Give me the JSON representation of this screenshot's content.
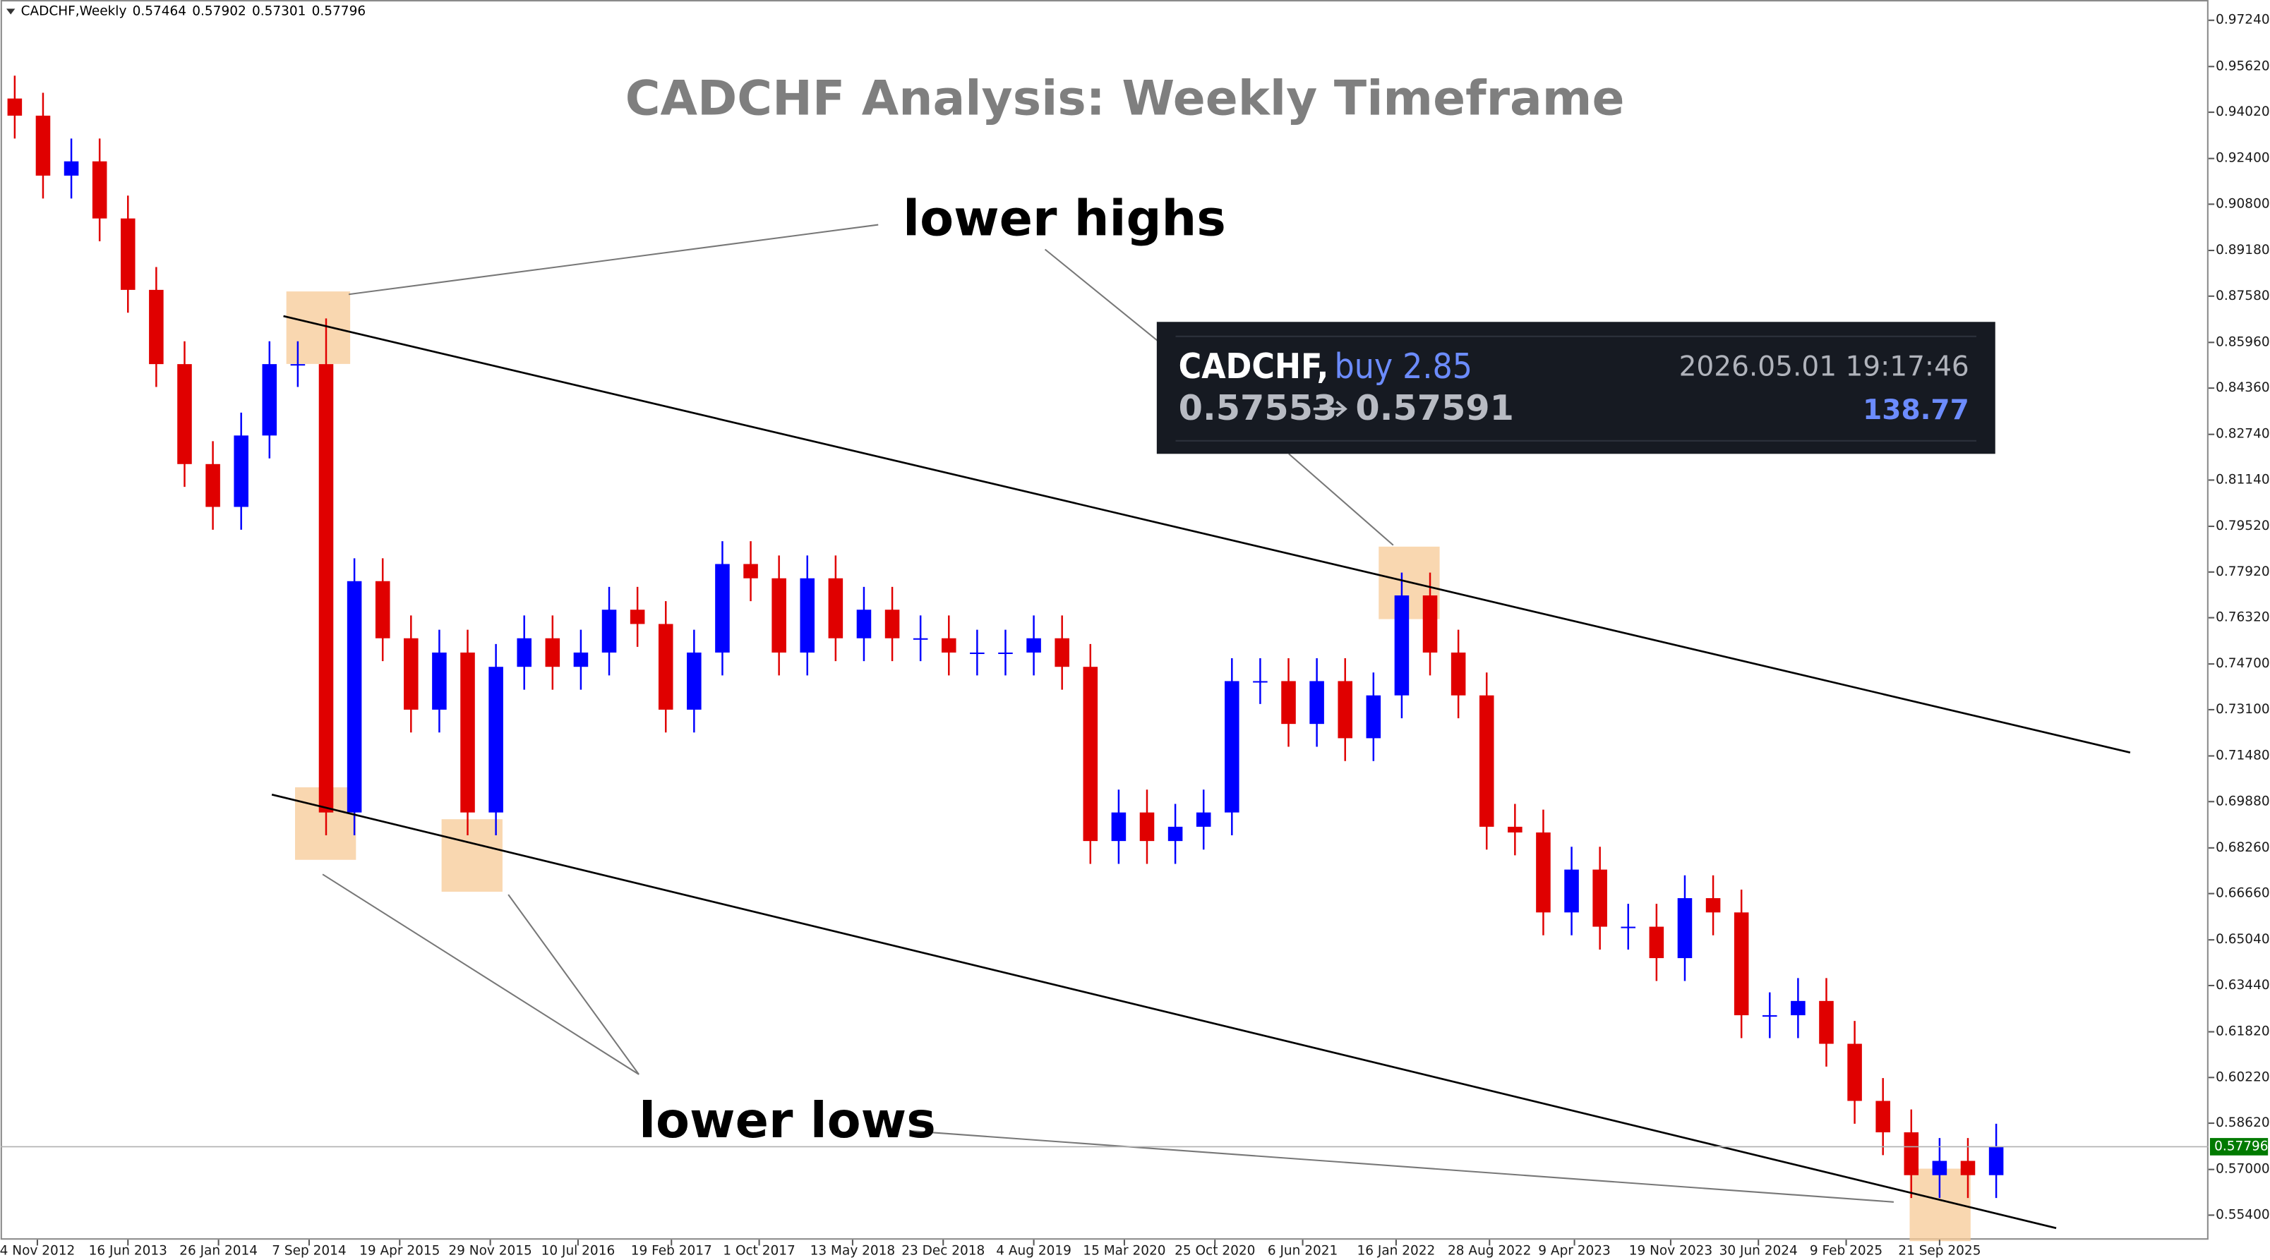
{
  "header": {
    "symbol": "CADCHF,Weekly",
    "values": [
      0.57464,
      0.57902,
      0.57301,
      0.57796
    ]
  },
  "trade_popup": {
    "symbol": "CADCHF,",
    "side": "buy 2.85",
    "time": "2026.05.01 19:17:46",
    "open_price": "0.57553",
    "current_price": "0.57591",
    "profit": "138.77"
  },
  "chart_data": {
    "type": "candlestick",
    "title": "CADCHF Analysis: Weekly Timeframe",
    "annotations": [
      "lower highs",
      "lower lows"
    ],
    "up_color": "#0000ff",
    "down_color": "#e00000",
    "last_price": 0.57796,
    "last_price_color": "#007a00",
    "xlim": [
      0,
      780
    ],
    "ylim": [
      0.5454,
      0.9795
    ],
    "xticks": [
      {
        "value": 13,
        "label": "4 Nov 2012"
      },
      {
        "value": 45,
        "label": "16 Jun 2013"
      },
      {
        "value": 77,
        "label": "26 Jan 2014"
      },
      {
        "value": 109,
        "label": "7 Sep 2014"
      },
      {
        "value": 141,
        "label": "19 Apr 2015"
      },
      {
        "value": 173,
        "label": "29 Nov 2015"
      },
      {
        "value": 204,
        "label": "10 Jul 2016"
      },
      {
        "value": 237,
        "label": "19 Feb 2017"
      },
      {
        "value": 268,
        "label": "1 Oct 2017"
      },
      {
        "value": 301,
        "label": "13 May 2018"
      },
      {
        "value": 333,
        "label": "23 Dec 2018"
      },
      {
        "value": 365,
        "label": "4 Aug 2019"
      },
      {
        "value": 397,
        "label": "15 Mar 2020"
      },
      {
        "value": 429,
        "label": "25 Oct 2020"
      },
      {
        "value": 460,
        "label": "6 Jun 2021"
      },
      {
        "value": 493,
        "label": "16 Jan 2022"
      },
      {
        "value": 526,
        "label": "28 Aug 2022"
      },
      {
        "value": 556,
        "label": "9 Apr 2023"
      },
      {
        "value": 590,
        "label": "19 Nov 2023"
      },
      {
        "value": 621,
        "label": "30 Jun 2024"
      },
      {
        "value": 652,
        "label": "9 Feb 2025"
      },
      {
        "value": 685,
        "label": "21 Sep 2025"
      }
    ],
    "yticks": [
      {
        "value": 0.9724,
        "label": "0.97240"
      },
      {
        "value": 0.9562,
        "label": "0.95620"
      },
      {
        "value": 0.9402,
        "label": "0.94020"
      },
      {
        "value": 0.924,
        "label": "0.92400"
      },
      {
        "value": 0.908,
        "label": "0.90800"
      },
      {
        "value": 0.8918,
        "label": "0.89180"
      },
      {
        "value": 0.8758,
        "label": "0.87580"
      },
      {
        "value": 0.8596,
        "label": "0.85960"
      },
      {
        "value": 0.8436,
        "label": "0.84360"
      },
      {
        "value": 0.8274,
        "label": "0.82740"
      },
      {
        "value": 0.8114,
        "label": "0.81140"
      },
      {
        "value": 0.7952,
        "label": "0.79520"
      },
      {
        "value": 0.7792,
        "label": "0.77920"
      },
      {
        "value": 0.7632,
        "label": "0.76320"
      },
      {
        "value": 0.747,
        "label": "0.74700"
      },
      {
        "value": 0.731,
        "label": "0.73100"
      },
      {
        "value": 0.7148,
        "label": "0.71480"
      },
      {
        "value": 0.6988,
        "label": "0.69880"
      },
      {
        "value": 0.6826,
        "label": "0.68260"
      },
      {
        "value": 0.6666,
        "label": "0.66660"
      },
      {
        "value": 0.6504,
        "label": "0.65040"
      },
      {
        "value": 0.6344,
        "label": "0.63440"
      },
      {
        "value": 0.6182,
        "label": "0.61820"
      },
      {
        "value": 0.6022,
        "label": "0.60220"
      },
      {
        "value": 0.5862,
        "label": "0.58620"
      },
      {
        "value": 0.57,
        "label": "0.57000"
      },
      {
        "value": 0.554,
        "label": "0.55400"
      }
    ],
    "x": [
      5,
      15,
      25,
      35,
      45,
      55,
      65,
      75,
      85,
      95,
      105,
      115,
      125,
      135,
      145,
      155,
      165,
      175,
      185,
      195,
      205,
      215,
      225,
      235,
      245,
      255,
      265,
      275,
      285,
      295,
      305,
      315,
      325,
      335,
      345,
      355,
      365,
      375,
      385,
      395,
      405,
      415,
      425,
      435,
      445,
      455,
      465,
      475,
      485,
      495,
      505,
      515,
      525,
      535,
      545,
      555,
      565,
      575,
      585,
      595,
      605,
      615,
      625,
      635,
      645,
      655,
      665,
      675,
      685,
      695,
      705
    ],
    "open": [
      0.945,
      0.939,
      0.918,
      0.923,
      0.903,
      0.878,
      0.852,
      0.817,
      0.802,
      0.827,
      0.852,
      0.852,
      0.695,
      0.776,
      0.756,
      0.731,
      0.751,
      0.695,
      0.746,
      0.756,
      0.746,
      0.751,
      0.766,
      0.761,
      0.731,
      0.751,
      0.782,
      0.777,
      0.751,
      0.777,
      0.756,
      0.766,
      0.756,
      0.756,
      0.751,
      0.751,
      0.751,
      0.756,
      0.746,
      0.685,
      0.695,
      0.685,
      0.69,
      0.695,
      0.741,
      0.741,
      0.726,
      0.741,
      0.721,
      0.736,
      0.771,
      0.751,
      0.736,
      0.69,
      0.688,
      0.66,
      0.675,
      0.655,
      0.655,
      0.644,
      0.665,
      0.66,
      0.624,
      0.624,
      0.629,
      0.614,
      0.594,
      0.583,
      0.568,
      0.573,
      0.568
    ],
    "high": [
      0.953,
      0.947,
      0.931,
      0.931,
      0.911,
      0.886,
      0.86,
      0.825,
      0.835,
      0.86,
      0.86,
      0.868,
      0.784,
      0.784,
      0.764,
      0.759,
      0.759,
      0.754,
      0.764,
      0.764,
      0.759,
      0.774,
      0.774,
      0.769,
      0.759,
      0.79,
      0.79,
      0.785,
      0.785,
      0.785,
      0.774,
      0.774,
      0.764,
      0.764,
      0.759,
      0.759,
      0.764,
      0.764,
      0.754,
      0.703,
      0.703,
      0.698,
      0.703,
      0.749,
      0.749,
      0.749,
      0.749,
      0.749,
      0.744,
      0.779,
      0.779,
      0.759,
      0.744,
      0.698,
      0.696,
      0.683,
      0.683,
      0.663,
      0.663,
      0.673,
      0.673,
      0.668,
      0.632,
      0.637,
      0.637,
      0.622,
      0.602,
      0.591,
      0.581,
      0.581,
      0.586
    ],
    "low": [
      0.931,
      0.91,
      0.91,
      0.895,
      0.87,
      0.844,
      0.809,
      0.794,
      0.794,
      0.819,
      0.844,
      0.687,
      0.687,
      0.748,
      0.723,
      0.723,
      0.687,
      0.687,
      0.738,
      0.738,
      0.738,
      0.743,
      0.753,
      0.723,
      0.723,
      0.743,
      0.769,
      0.743,
      0.743,
      0.748,
      0.748,
      0.748,
      0.748,
      0.743,
      0.743,
      0.743,
      0.743,
      0.738,
      0.677,
      0.677,
      0.677,
      0.677,
      0.682,
      0.687,
      0.733,
      0.718,
      0.718,
      0.713,
      0.713,
      0.728,
      0.743,
      0.728,
      0.682,
      0.68,
      0.652,
      0.652,
      0.647,
      0.647,
      0.636,
      0.636,
      0.652,
      0.616,
      0.616,
      0.616,
      0.606,
      0.586,
      0.575,
      0.56,
      0.56,
      0.56,
      0.56
    ],
    "close": [
      0.939,
      0.918,
      0.923,
      0.903,
      0.878,
      0.852,
      0.817,
      0.802,
      0.827,
      0.852,
      0.852,
      0.695,
      0.776,
      0.756,
      0.731,
      0.751,
      0.695,
      0.746,
      0.756,
      0.746,
      0.751,
      0.766,
      0.761,
      0.731,
      0.751,
      0.782,
      0.777,
      0.751,
      0.777,
      0.756,
      0.766,
      0.756,
      0.756,
      0.751,
      0.751,
      0.751,
      0.756,
      0.746,
      0.685,
      0.695,
      0.685,
      0.69,
      0.695,
      0.741,
      0.741,
      0.726,
      0.741,
      0.721,
      0.736,
      0.771,
      0.751,
      0.736,
      0.69,
      0.688,
      0.66,
      0.675,
      0.655,
      0.655,
      0.644,
      0.665,
      0.66,
      0.624,
      0.624,
      0.629,
      0.614,
      0.594,
      0.583,
      0.568,
      0.573,
      0.568,
      0.578
    ]
  }
}
